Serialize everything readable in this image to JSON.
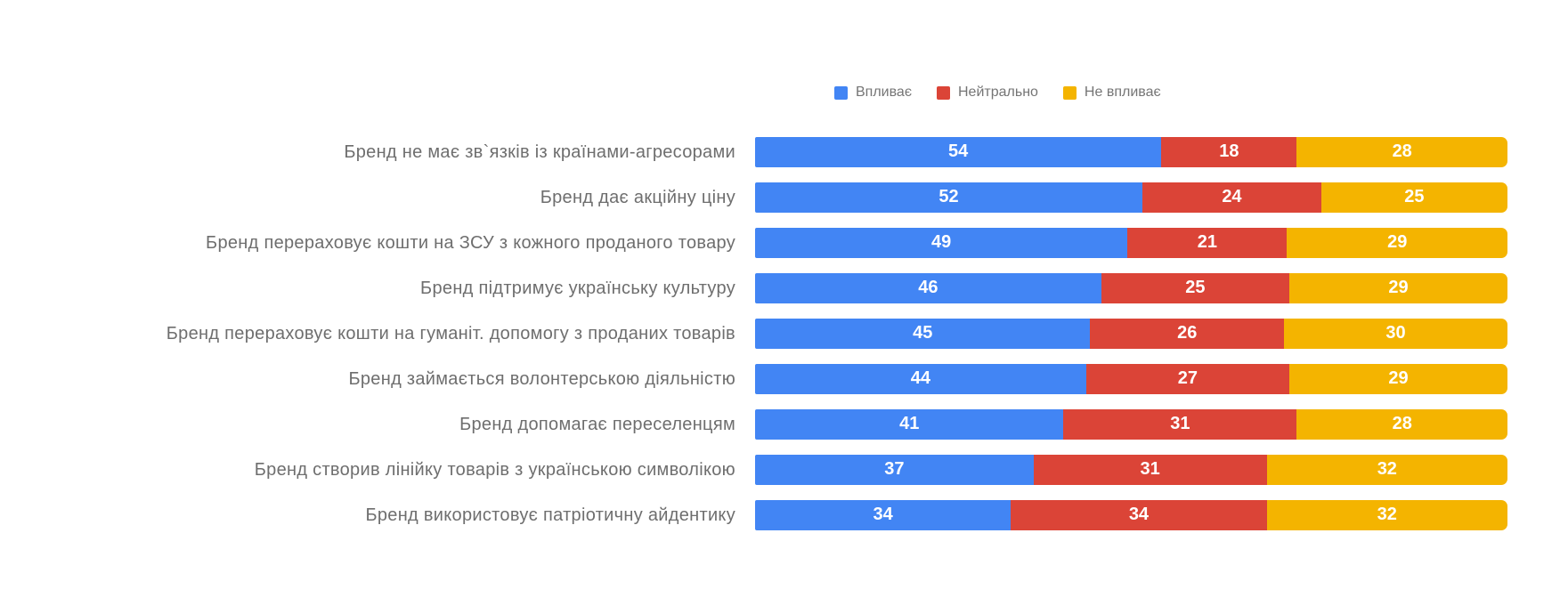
{
  "page": {
    "background": "#ffffff"
  },
  "chart_data": {
    "type": "bar",
    "stacked": true,
    "percent_stacked": true,
    "orientation": "horizontal",
    "title": "",
    "xlabel": "",
    "ylabel": "",
    "legend_position": "top",
    "grid": false,
    "value_labels": "inside",
    "value_label_color": "#ffffff",
    "category_label_color": "#6e6e6e",
    "legend_text_color": "#757575",
    "categories": [
      "Бренд не має зв`язків із країнами-агресорами",
      "Бренд дає акційну ціну",
      "Бренд перераховує кошти на ЗСУ з кожного проданого товару",
      "Бренд підтримує українську культуру",
      "Бренд перераховує кошти на гуманіт. допомогу з проданих товарів",
      "Бренд займається волонтерською діяльністю",
      "Бренд допомагає переселенцям",
      "Бренд створив лінійку товарів з українською символікою",
      "Бренд використовує патріотичну айдентику"
    ],
    "series": [
      {
        "name": "Впливає",
        "color": "#4285F4",
        "values": [
          54,
          52,
          49,
          46,
          45,
          44,
          41,
          37,
          34
        ]
      },
      {
        "name": "Нейтрально",
        "color": "#DB4437",
        "values": [
          18,
          24,
          21,
          25,
          26,
          27,
          31,
          31,
          34
        ]
      },
      {
        "name": "Не впливає",
        "color": "#F4B400",
        "values": [
          28,
          25,
          29,
          29,
          30,
          29,
          28,
          32,
          32
        ]
      }
    ]
  }
}
